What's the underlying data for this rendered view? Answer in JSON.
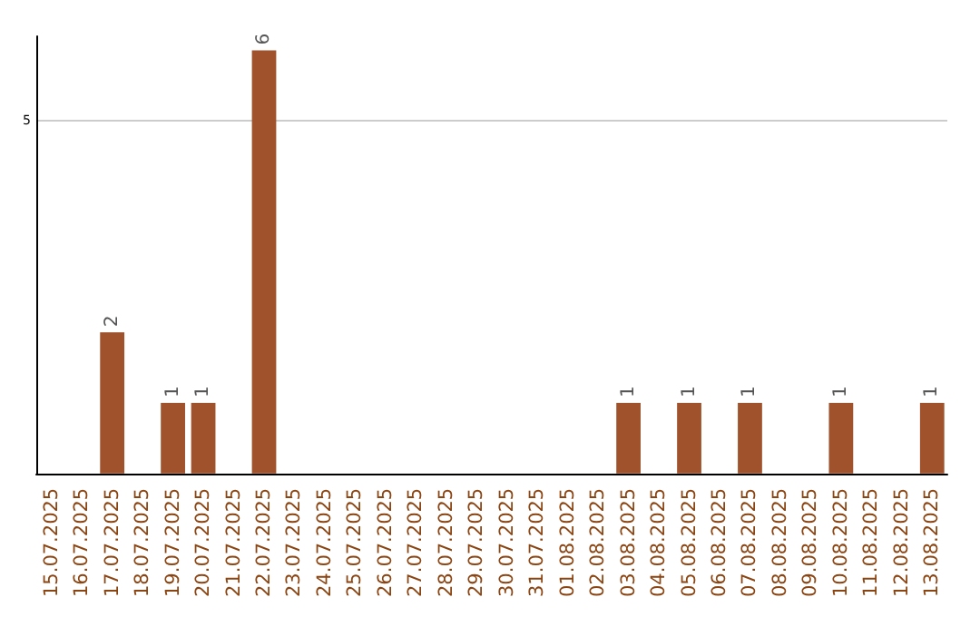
{
  "chart_data": {
    "type": "bar",
    "categories": [
      "15.07.2025",
      "16.07.2025",
      "17.07.2025",
      "18.07.2025",
      "19.07.2025",
      "20.07.2025",
      "21.07.2025",
      "22.07.2025",
      "23.07.2025",
      "24.07.2025",
      "25.07.2025",
      "26.07.2025",
      "27.07.2025",
      "28.07.2025",
      "29.07.2025",
      "30.07.2025",
      "31.07.2025",
      "01.08.2025",
      "02.08.2025",
      "03.08.2025",
      "04.08.2025",
      "05.08.2025",
      "06.08.2025",
      "07.08.2025",
      "08.08.2025",
      "09.08.2025",
      "10.08.2025",
      "11.08.2025",
      "12.08.2025",
      "13.08.2025"
    ],
    "values": [
      0,
      0,
      2,
      0,
      1,
      1,
      0,
      6,
      0,
      0,
      0,
      0,
      0,
      0,
      0,
      0,
      0,
      0,
      0,
      1,
      0,
      1,
      0,
      1,
      0,
      0,
      1,
      0,
      0,
      1
    ],
    "value_labels": [
      null,
      null,
      "2",
      null,
      "1",
      "1",
      null,
      "6",
      null,
      null,
      null,
      null,
      null,
      null,
      null,
      null,
      null,
      null,
      null,
      "1",
      null,
      "1",
      null,
      "1",
      null,
      null,
      "1",
      null,
      null,
      "1"
    ],
    "color": "#a0522d",
    "ylim": [
      0,
      6.2
    ],
    "yticks": [
      5
    ],
    "grid": "y"
  }
}
